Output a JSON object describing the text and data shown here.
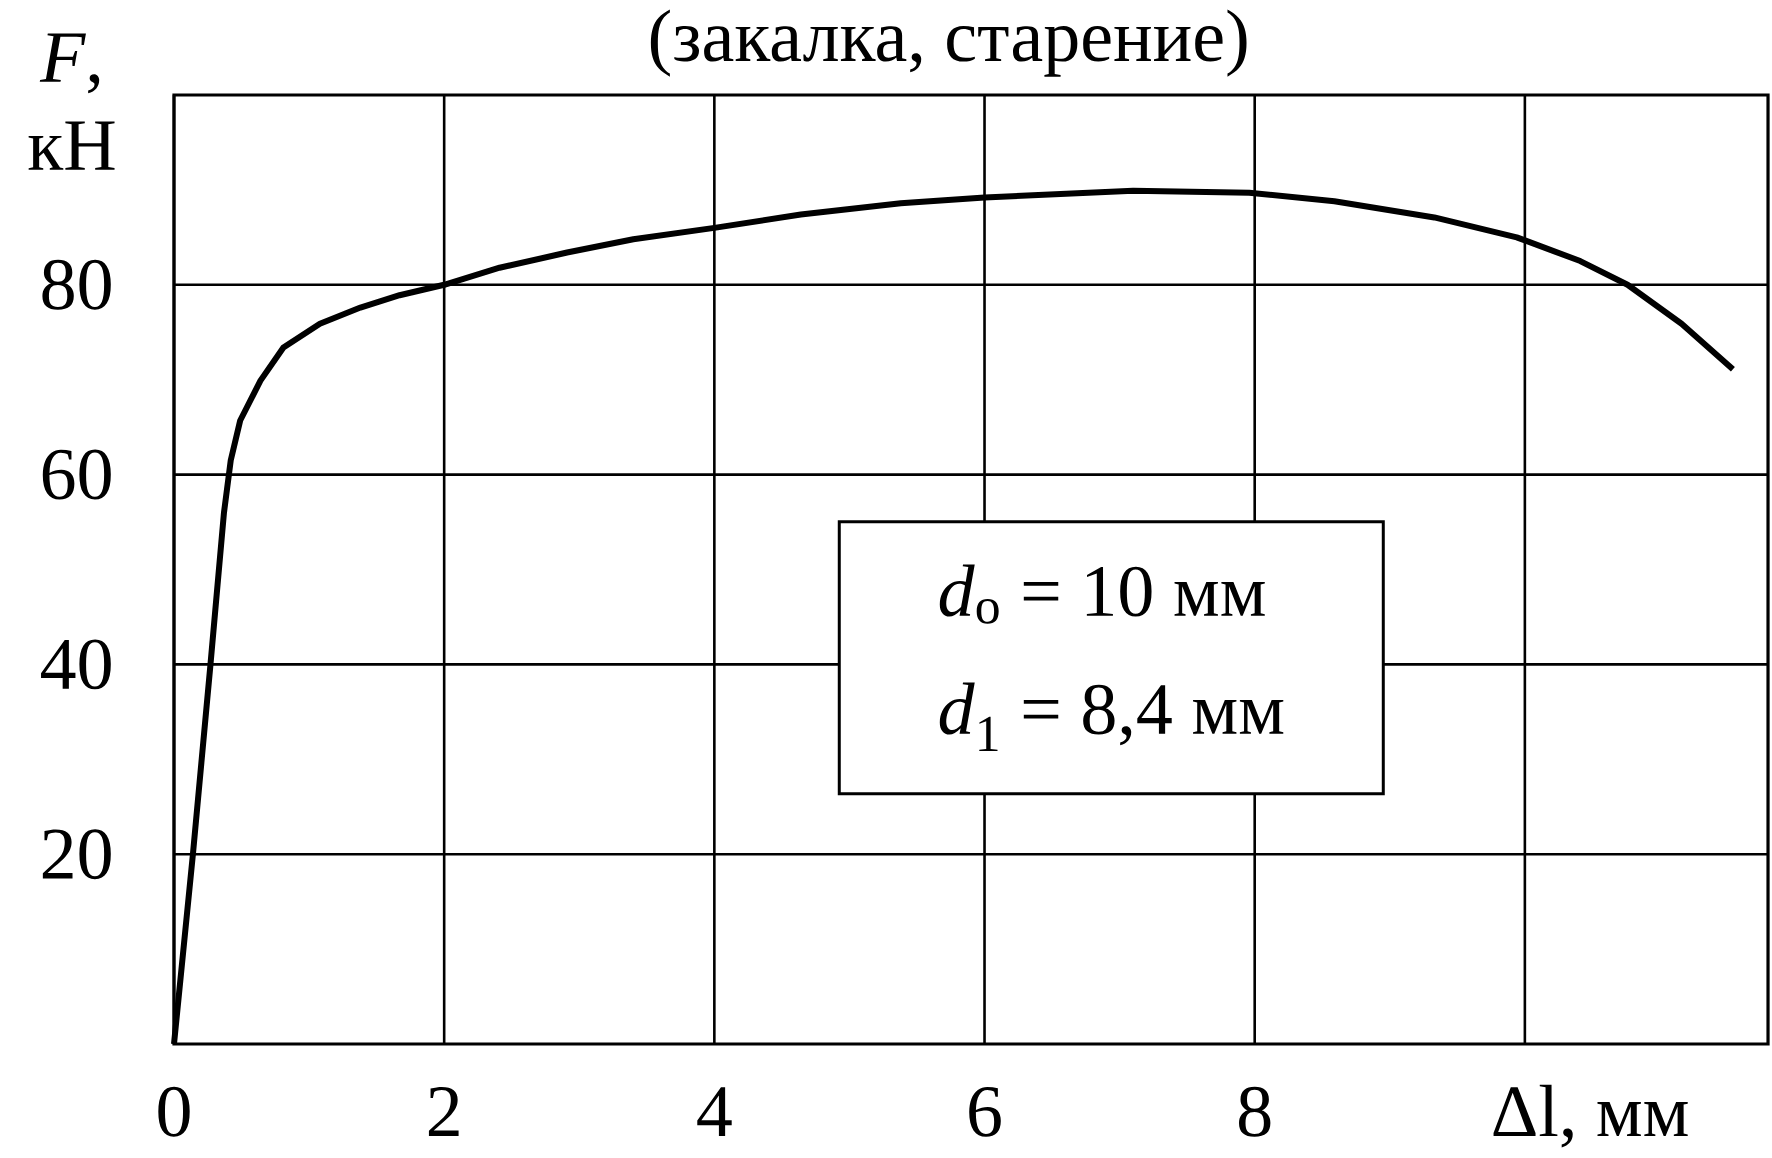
{
  "chart_data": {
    "type": "line",
    "title": "(закалка, старение)",
    "xlabel": "Δl, мм",
    "ylabel": "*F*, кН",
    "x": [
      0,
      0.14,
      0.27,
      0.37,
      0.42,
      0.49,
      0.64,
      0.81,
      1.08,
      1.38,
      1.67,
      2.0,
      2.41,
      2.91,
      3.4,
      4.0,
      4.64,
      5.38,
      6.0,
      7.1,
      7.96,
      8.59,
      9.33,
      9.94,
      10.41,
      10.76,
      11.16,
      11.54
    ],
    "values": [
      0,
      20,
      40,
      56,
      61.5,
      65.7,
      69.9,
      73.4,
      75.9,
      77.6,
      78.9,
      80,
      81.8,
      83.4,
      84.8,
      86,
      87.4,
      88.6,
      89.2,
      89.9,
      89.7,
      88.8,
      87.1,
      85,
      82.5,
      80,
      75.9,
      71.1
    ],
    "color": "#000000",
    "line_style": "solid",
    "xlim": [
      0,
      11.8
    ],
    "ylim": [
      0,
      100
    ],
    "xticks": [
      0,
      2,
      4,
      6,
      8,
      {
        "value": 10,
        "label": null
      }
    ],
    "yticks": [
      20,
      40,
      60,
      80
    ],
    "grid": true,
    "annotations": [
      "*d*$_{o}$ = 10 мм",
      "*d*$_{1}$ = 8,4 мм"
    ]
  }
}
